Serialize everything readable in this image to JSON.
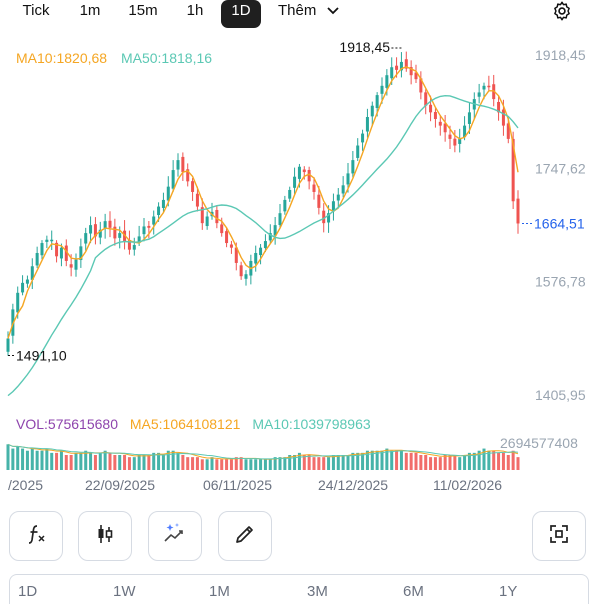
{
  "timeframes": {
    "tick": "Tick",
    "m1": "1m",
    "m15": "15m",
    "h1": "1h",
    "d1": "1D",
    "more": "Thêm"
  },
  "indicators": {
    "ma10": "MA10:1820,68",
    "ma50": "MA50:1818,16",
    "vol": "VOL:575615680",
    "vol_ma5": "MA5:1064108121",
    "vol_ma10": "MA10:1039798963"
  },
  "colors": {
    "up": "#26a69a",
    "down": "#ef5350",
    "ma10": "#f5a623",
    "ma50": "#5bc8b4",
    "vol_label": "#8e44ad",
    "last_price": "#2563eb",
    "axis_text": "#9aa5b1"
  },
  "chart_data": {
    "type": "candlestick",
    "y_ticks": [
      "1918,45",
      "1747,62",
      "1576,78",
      "1405,95"
    ],
    "y_tick_values": [
      1918.45,
      1747.62,
      1576.78,
      1405.95
    ],
    "ylim": [
      1405.95,
      1918.45
    ],
    "x_ticks": [
      "/2025",
      "22/09/2025",
      "06/11/2025",
      "24/12/2025",
      "11/02/2026"
    ],
    "annotations": {
      "high": "1918,45",
      "low": "1491,10",
      "last": "1664,51"
    },
    "volume_axis_label": "2694577408",
    "close": [
      1491.1,
      1535,
      1560,
      1575,
      1580,
      1600,
      1620,
      1635,
      1640,
      1640,
      1615,
      1628,
      1608,
      1598,
      1610,
      1630,
      1650,
      1662,
      1645,
      1655,
      1668,
      1658,
      1642,
      1650,
      1638,
      1625,
      1632,
      1645,
      1660,
      1658,
      1675,
      1690,
      1700,
      1720,
      1745,
      1760,
      1742,
      1728,
      1712,
      1690,
      1665,
      1675,
      1682,
      1665,
      1650,
      1635,
      1628,
      1605,
      1585,
      1588,
      1608,
      1620,
      1628,
      1638,
      1650,
      1662,
      1680,
      1700,
      1715,
      1735,
      1750,
      1742,
      1728,
      1712,
      1688,
      1665,
      1680,
      1698,
      1708,
      1722,
      1740,
      1760,
      1782,
      1800,
      1825,
      1842,
      1858,
      1872,
      1888,
      1900,
      1896,
      1908,
      1898,
      1888,
      1882,
      1862,
      1842,
      1832,
      1822,
      1812,
      1802,
      1792,
      1782,
      1792,
      1812,
      1832,
      1852,
      1862,
      1872,
      1872,
      1852,
      1832,
      1812,
      1792,
      1698,
      1664.51
    ],
    "volume": [
      1.2,
      1.0,
      1.1,
      1.0,
      0.9,
      1.0,
      0.9,
      0.9,
      1.0,
      0.8,
      0.8,
      0.9,
      0.7,
      0.7,
      0.8,
      0.8,
      0.9,
      0.8,
      0.7,
      0.8,
      0.9,
      0.8,
      0.7,
      0.7,
      0.7,
      0.6,
      0.6,
      0.7,
      0.7,
      0.7,
      0.8,
      0.8,
      0.7,
      0.9,
      0.9,
      0.8,
      0.7,
      0.6,
      0.6,
      0.6,
      0.5,
      0.5,
      0.6,
      0.5,
      0.5,
      0.5,
      0.5,
      0.6,
      0.6,
      0.5,
      0.5,
      0.5,
      0.5,
      0.5,
      0.5,
      0.6,
      0.6,
      0.6,
      0.7,
      0.7,
      0.8,
      0.7,
      0.7,
      0.6,
      0.6,
      0.6,
      0.6,
      0.7,
      0.7,
      0.7,
      0.7,
      0.8,
      0.8,
      0.8,
      0.9,
      0.9,
      0.9,
      0.9,
      1.0,
      0.9,
      0.9,
      0.9,
      0.8,
      0.8,
      0.8,
      0.7,
      0.7,
      0.6,
      0.6,
      0.6,
      0.7,
      0.7,
      0.7,
      0.6,
      0.7,
      0.8,
      0.8,
      0.9,
      1.0,
      0.9,
      0.9,
      0.8,
      0.8,
      0.7,
      0.9,
      0.6
    ]
  },
  "range_options": [
    "1D",
    "1W",
    "1M",
    "3M",
    "6M",
    "1Y"
  ],
  "tools": {
    "formula": "formula-icon",
    "candle": "candlestick-icon",
    "ai": "ai-trend-icon",
    "draw": "pencil-icon",
    "fullscreen": "fullscreen-icon"
  }
}
